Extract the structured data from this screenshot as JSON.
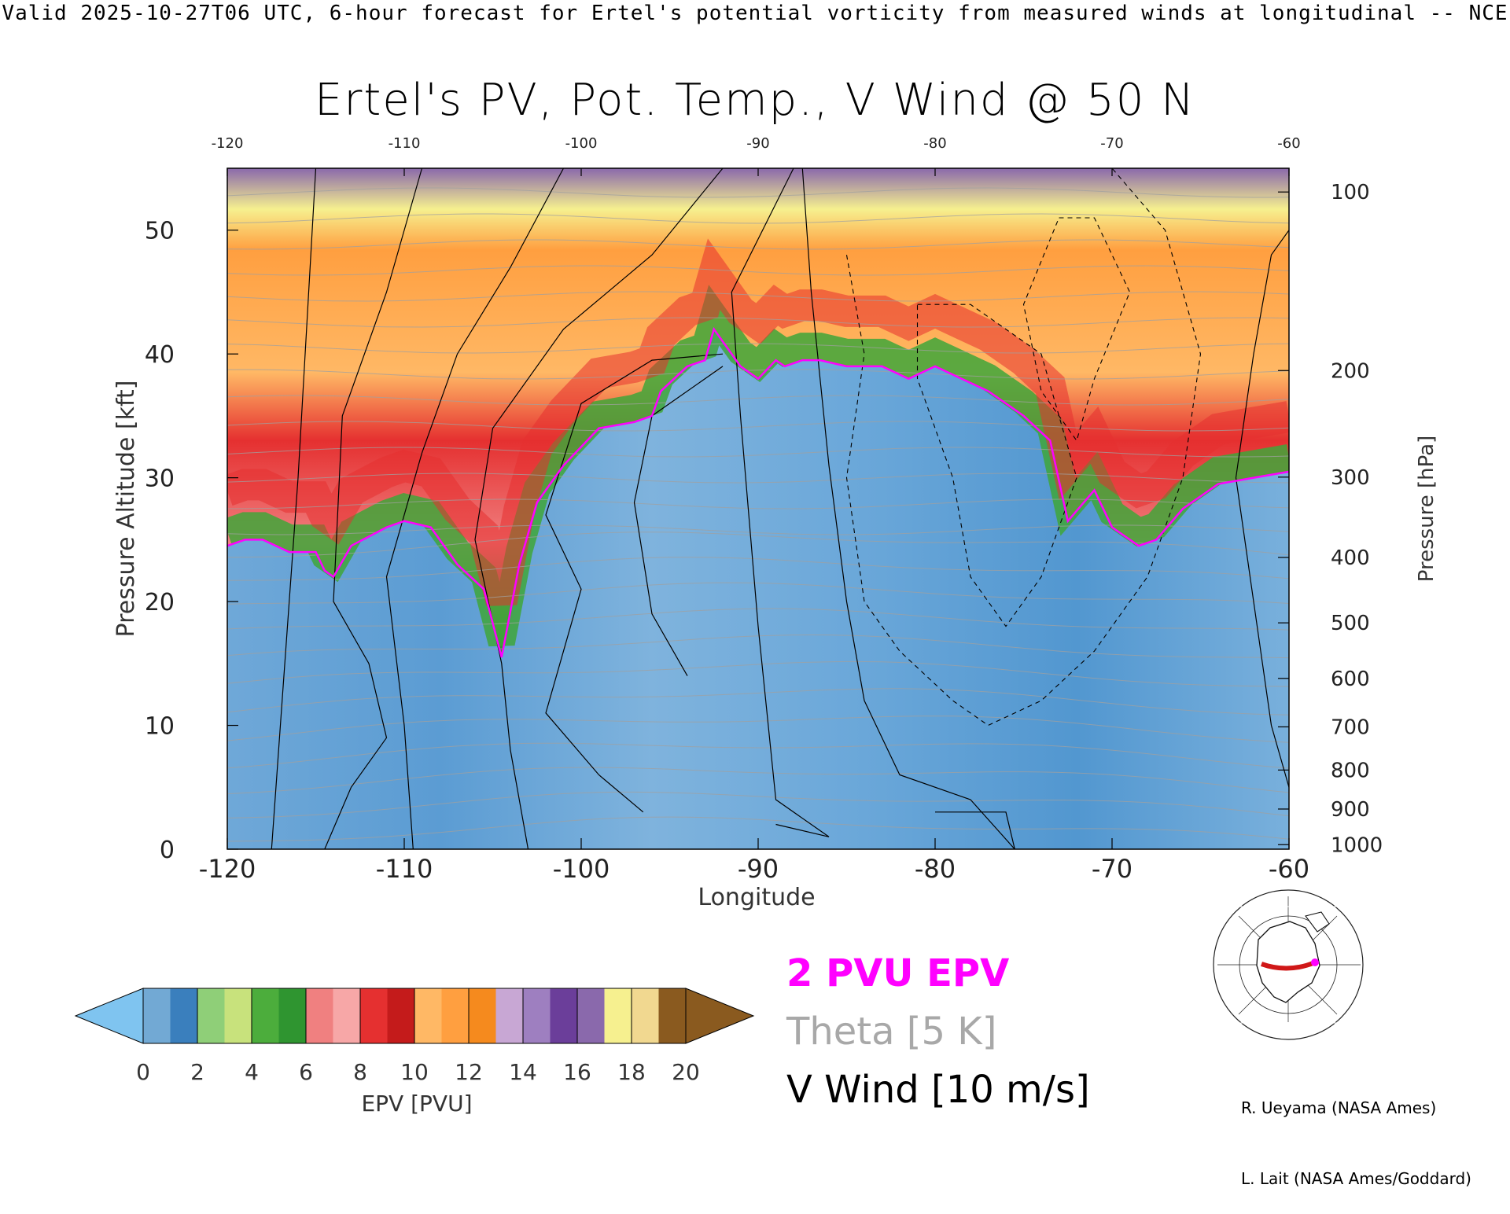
{
  "header": {
    "banner": "Valid 2025-10-27T06 UTC, 6-hour forecast for Ertel's potential vorticity from measured winds at longitudinal -- NCE",
    "title": "Ertel's PV, Pot. Temp., V Wind @ 50 N"
  },
  "chart_data": {
    "type": "heatmap",
    "title": "Ertel's PV, Pot. Temp., V Wind @ 50 N",
    "xlabel": "Longitude",
    "ylabel_left": "Pressure Altitude [kft]",
    "ylabel_right": "Pressure [hPa]",
    "x_ticks": [
      "-120",
      "-110",
      "-100",
      "-90",
      "-80",
      "-70",
      "-60"
    ],
    "x_ticks_top": [
      "-120",
      "-110",
      "-100",
      "-90",
      "-80",
      "-70",
      "-60"
    ],
    "y_ticks_left": [
      "0",
      "10",
      "20",
      "30",
      "40",
      "50"
    ],
    "y_ticks_right": [
      "1000",
      "900",
      "800",
      "700",
      "600",
      "500",
      "400",
      "300",
      "200",
      "100"
    ],
    "xlim": [
      -120,
      -60
    ],
    "ylim": [
      0,
      55
    ],
    "tropopause_2pvu_kft": [
      [
        -120,
        24.5
      ],
      [
        -119,
        25
      ],
      [
        -118,
        25
      ],
      [
        -116.5,
        24
      ],
      [
        -115,
        24
      ],
      [
        -114.5,
        22.5
      ],
      [
        -114,
        22
      ],
      [
        -113,
        24.5
      ],
      [
        -111,
        26
      ],
      [
        -110,
        26.5
      ],
      [
        -108.5,
        26
      ],
      [
        -107,
        23
      ],
      [
        -105.5,
        21
      ],
      [
        -104.5,
        15.5
      ],
      [
        -103.5,
        23
      ],
      [
        -102.5,
        28
      ],
      [
        -101,
        31
      ],
      [
        -99,
        34
      ],
      [
        -97,
        34.5
      ],
      [
        -96,
        35
      ],
      [
        -95.5,
        37
      ],
      [
        -94,
        39
      ],
      [
        -93,
        39.5
      ],
      [
        -92.5,
        42
      ],
      [
        -91,
        39
      ],
      [
        -90,
        38
      ],
      [
        -89,
        39.5
      ],
      [
        -88.5,
        39
      ],
      [
        -87.5,
        39.5
      ],
      [
        -86.5,
        39.5
      ],
      [
        -85,
        39
      ],
      [
        -83,
        39
      ],
      [
        -81.5,
        38
      ],
      [
        -80,
        39
      ],
      [
        -78.5,
        38
      ],
      [
        -77,
        37
      ],
      [
        -75,
        35
      ],
      [
        -73.5,
        33
      ],
      [
        -72.5,
        26.5
      ],
      [
        -71,
        29
      ],
      [
        -70,
        26
      ],
      [
        -68.5,
        24.5
      ],
      [
        -67.5,
        25
      ],
      [
        -66,
        27.5
      ],
      [
        -64,
        29.5
      ],
      [
        -62,
        30
      ],
      [
        -60,
        30.5
      ]
    ],
    "v_wind_contours_m_s": [
      "-10",
      "0",
      "10",
      "20",
      "30"
    ],
    "colorbar": {
      "label": "EPV [PVU]",
      "ticks": [
        "0",
        "2",
        "4",
        "6",
        "8",
        "10",
        "12",
        "14",
        "16",
        "18",
        "20"
      ],
      "colors": [
        "#7fc4f0",
        "#72a9d4",
        "#3a7fbd",
        "#8fcf78",
        "#c8e27c",
        "#4cad3c",
        "#2f9530",
        "#f08080",
        "#f7a7a7",
        "#e53030",
        "#c41b1b",
        "#ffb865",
        "#ff9f40",
        "#f58a1e",
        "#c8a7d4",
        "#9e7fc0",
        "#6b3e9a",
        "#8a69ac",
        "#f6f08f",
        "#f1d890",
        "#8a5a1f"
      ]
    },
    "legend": {
      "epv_line": "2 PVU EPV",
      "theta": "Theta [5 K]",
      "vwind": "V Wind [10 m/s]",
      "colors": {
        "epv": "#ff00ff",
        "theta": "#a0a0a0",
        "vwind": "#000000"
      }
    }
  },
  "credits": {
    "line1": "R. Ueyama (NASA Ames)",
    "line2": "L. Lait (NASA Ames/Goddard)"
  },
  "inset_map": {
    "icon": "globe-locator-icon",
    "track_color": "#d01818",
    "marker_color": "#ff00ff"
  }
}
